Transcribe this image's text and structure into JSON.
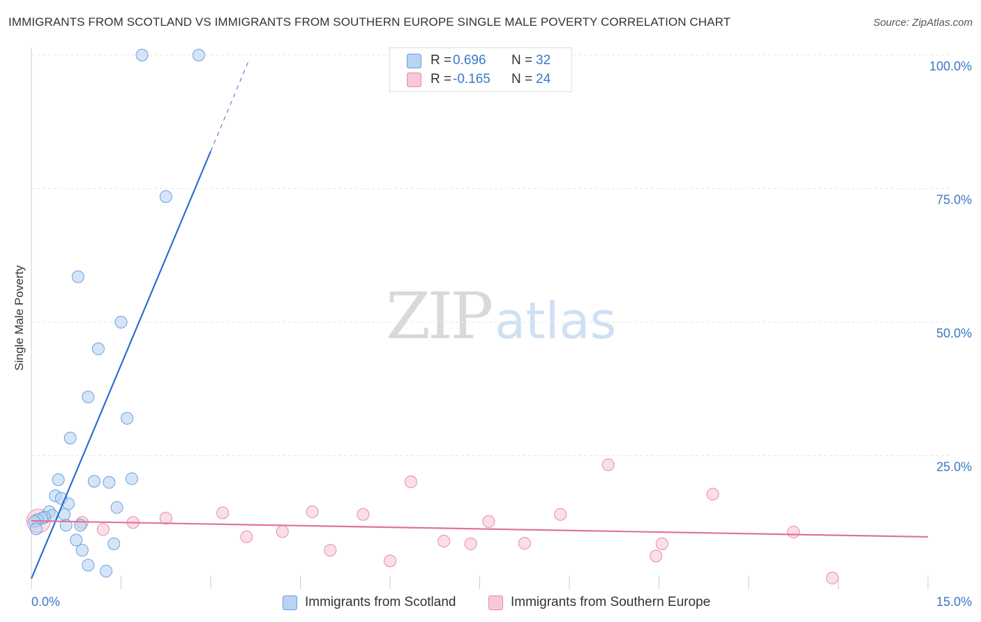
{
  "header": {
    "title": "IMMIGRANTS FROM SCOTLAND VS IMMIGRANTS FROM SOUTHERN EUROPE SINGLE MALE POVERTY CORRELATION CHART",
    "source": "Source: ZipAtlas.com"
  },
  "legend": {
    "series1": {
      "r_label": "R =",
      "r_value": "0.696",
      "n_label": "N =",
      "n_value": "32"
    },
    "series2": {
      "r_label": "R =",
      "r_value": "-0.165",
      "n_label": "N =",
      "n_value": "24"
    }
  },
  "watermark": {
    "zip": "ZIP",
    "atlas": "atlas"
  },
  "colors": {
    "series1_fill": "#b9d3f2",
    "series1_stroke": "#6a9fe0",
    "series1_line": "#2e6fcc",
    "series2_fill": "#f7c9d6",
    "series2_stroke": "#e88aa6",
    "series2_line": "#e0729a",
    "tick_label": "#3a78c9",
    "grid": "#e6e6e6"
  },
  "chart_data": {
    "type": "scatter",
    "title": "IMMIGRANTS FROM SCOTLAND VS IMMIGRANTS FROM SOUTHERN EUROPE SINGLE MALE POVERTY CORRELATION CHART",
    "xlabel": "",
    "ylabel": "Single Male Poverty",
    "xlim": [
      0,
      15
    ],
    "ylim": [
      0,
      100
    ],
    "x_tick_labels": [
      "0.0%",
      "15.0%"
    ],
    "y_ticks": [
      25,
      50,
      75,
      100
    ],
    "y_tick_labels": [
      "25.0%",
      "50.0%",
      "75.0%",
      "100.0%"
    ],
    "grid": true,
    "legend_position": "top-center",
    "series": [
      {
        "name": "Immigrants from Scotland",
        "r": 0.696,
        "n": 32,
        "trend": {
          "x0": 0.0,
          "y0": 2.0,
          "x1": 3.0,
          "y1": 82.0,
          "dash_to_x": 3.65
        },
        "points": [
          [
            1.85,
            100
          ],
          [
            2.8,
            100
          ],
          [
            2.25,
            73.5
          ],
          [
            0.78,
            58.5
          ],
          [
            1.5,
            50
          ],
          [
            1.12,
            45
          ],
          [
            0.95,
            36
          ],
          [
            1.6,
            32
          ],
          [
            0.65,
            28.3
          ],
          [
            0.45,
            20.5
          ],
          [
            1.05,
            20.2
          ],
          [
            1.3,
            20
          ],
          [
            1.68,
            20.7
          ],
          [
            0.4,
            17.5
          ],
          [
            0.5,
            17
          ],
          [
            0.62,
            16
          ],
          [
            1.43,
            15.3
          ],
          [
            0.3,
            14.5
          ],
          [
            0.55,
            14
          ],
          [
            0.35,
            13.8
          ],
          [
            0.22,
            13.5
          ],
          [
            0.18,
            13.3
          ],
          [
            0.1,
            13
          ],
          [
            0.05,
            12.7
          ],
          [
            0.08,
            11.3
          ],
          [
            0.58,
            12
          ],
          [
            0.82,
            12
          ],
          [
            0.75,
            9.2
          ],
          [
            1.38,
            8.5
          ],
          [
            0.85,
            7.3
          ],
          [
            0.95,
            4.5
          ],
          [
            1.25,
            3.4
          ]
        ]
      },
      {
        "name": "Immigrants from Southern Europe",
        "r": -0.165,
        "n": 24,
        "trend": {
          "x0": 0.0,
          "y0": 12.8,
          "x1": 15.0,
          "y1": 9.8
        },
        "points": [
          [
            0.1,
            13
          ],
          [
            0.85,
            12.5
          ],
          [
            1.2,
            11.2
          ],
          [
            1.7,
            12.5
          ],
          [
            2.25,
            13.3
          ],
          [
            3.2,
            14.3
          ],
          [
            3.6,
            9.8
          ],
          [
            4.2,
            10.8
          ],
          [
            4.7,
            14.5
          ],
          [
            5.0,
            7.3
          ],
          [
            5.55,
            14
          ],
          [
            6.0,
            5.3
          ],
          [
            6.35,
            20.1
          ],
          [
            6.9,
            9
          ],
          [
            7.35,
            8.5
          ],
          [
            7.65,
            12.7
          ],
          [
            8.25,
            8.6
          ],
          [
            8.85,
            14
          ],
          [
            9.65,
            23.3
          ],
          [
            10.45,
            6.2
          ],
          [
            10.55,
            8.5
          ],
          [
            11.4,
            17.8
          ],
          [
            12.75,
            10.7
          ],
          [
            13.4,
            2.1
          ]
        ]
      }
    ]
  },
  "bottom_legend": {
    "series1_label": "Immigrants from Scotland",
    "series2_label": "Immigrants from Southern Europe"
  }
}
